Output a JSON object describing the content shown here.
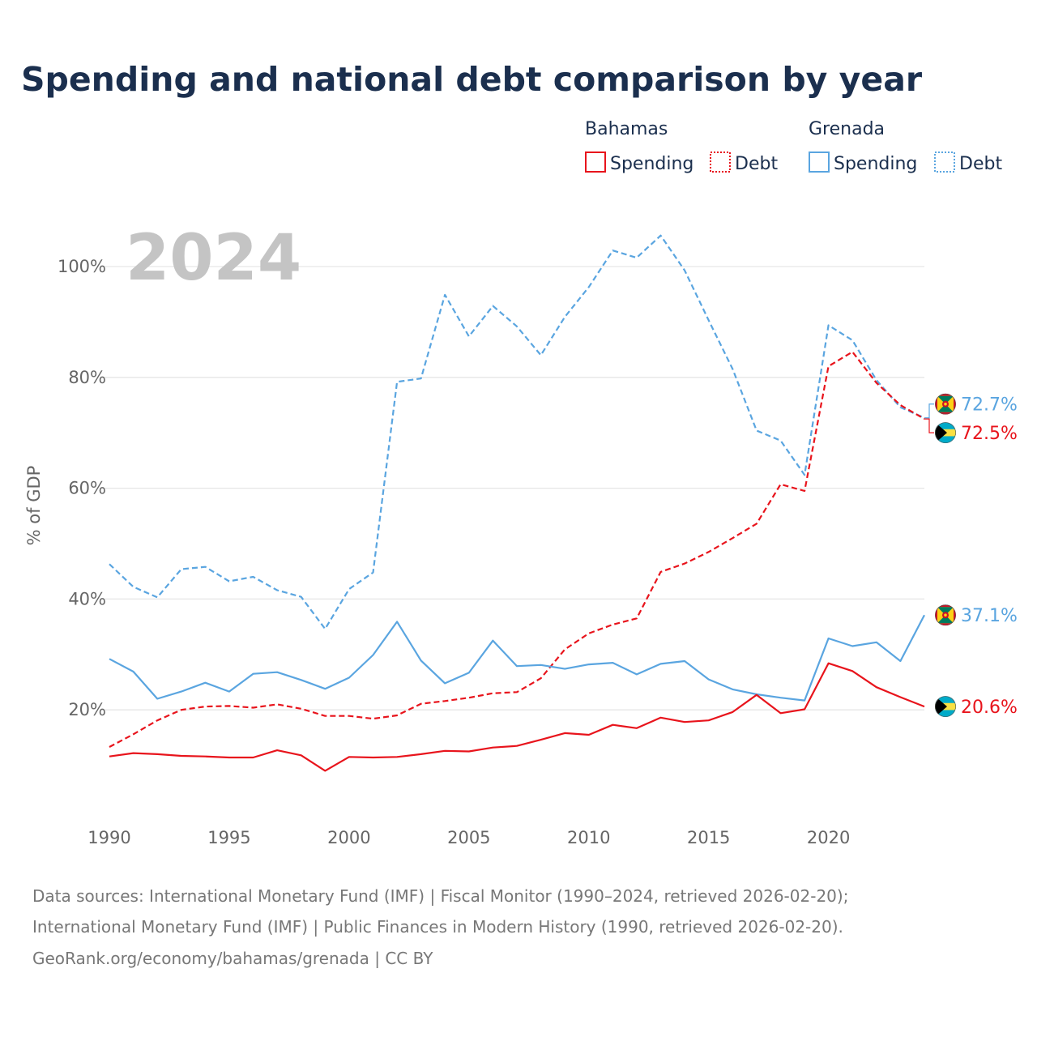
{
  "title": "Spending and national debt comparison by year",
  "year_watermark": "2024",
  "legend": {
    "groups": [
      {
        "country": "Bahamas",
        "color": "#e8141c",
        "items": [
          {
            "label": "Spending",
            "style": "solid"
          },
          {
            "label": "Debt",
            "style": "dotted"
          }
        ]
      },
      {
        "country": "Grenada",
        "color": "#5aa5e0",
        "items": [
          {
            "label": "Spending",
            "style": "solid"
          },
          {
            "label": "Debt",
            "style": "dotted"
          }
        ]
      }
    ]
  },
  "chart_data": {
    "type": "line",
    "title": "Spending and national debt comparison by year",
    "xlabel": "",
    "ylabel": "% of GDP",
    "xlim": [
      1990,
      2024
    ],
    "ylim": [
      0,
      110
    ],
    "x_ticks": [
      1990,
      1995,
      2000,
      2005,
      2010,
      2015,
      2020
    ],
    "y_ticks": [
      20,
      40,
      60,
      80,
      100
    ],
    "y_tick_labels": [
      "20%",
      "40%",
      "60%",
      "80%",
      "100%"
    ],
    "grid": true,
    "x": [
      1990,
      1991,
      1992,
      1993,
      1994,
      1995,
      1996,
      1997,
      1998,
      1999,
      2000,
      2001,
      2002,
      2003,
      2004,
      2005,
      2006,
      2007,
      2008,
      2009,
      2010,
      2011,
      2012,
      2013,
      2014,
      2015,
      2016,
      2017,
      2018,
      2019,
      2020,
      2021,
      2022,
      2023,
      2024
    ],
    "series": [
      {
        "name": "Grenada Debt",
        "country": "Grenada",
        "metric": "Debt",
        "color": "#5aa5e0",
        "dash": "dashed",
        "values": [
          46.3,
          42.2,
          40.3,
          45.4,
          45.8,
          43.2,
          44.0,
          41.6,
          40.4,
          34.6,
          41.8,
          44.8,
          79.2,
          79.8,
          94.9,
          87.4,
          92.9,
          89.2,
          84.0,
          90.9,
          96.3,
          102.9,
          101.6,
          105.6,
          99.3,
          90.3,
          81.5,
          70.4,
          68.6,
          62.4,
          89.4,
          86.7,
          79.5,
          74.6,
          72.7
        ],
        "end_label": "72.7%"
      },
      {
        "name": "Bahamas Debt",
        "country": "Bahamas",
        "metric": "Debt",
        "color": "#e8141c",
        "dash": "dashed",
        "values": [
          13.3,
          15.6,
          18.1,
          20.0,
          20.6,
          20.7,
          20.4,
          21.0,
          20.2,
          18.9,
          18.9,
          18.4,
          19.0,
          21.1,
          21.6,
          22.2,
          23.0,
          23.2,
          25.7,
          30.9,
          33.8,
          35.4,
          36.5,
          44.9,
          46.4,
          48.5,
          51.0,
          53.6,
          60.7,
          59.5,
          82.0,
          84.6,
          79.0,
          75.0,
          72.5
        ],
        "end_label": "72.5%"
      },
      {
        "name": "Grenada Spending",
        "country": "Grenada",
        "metric": "Spending",
        "color": "#5aa5e0",
        "dash": "solid",
        "values": [
          29.2,
          26.9,
          22.0,
          23.3,
          24.9,
          23.3,
          26.5,
          26.8,
          25.4,
          23.8,
          25.8,
          29.9,
          35.9,
          28.9,
          24.8,
          26.7,
          32.5,
          27.9,
          28.1,
          27.4,
          28.2,
          28.5,
          26.4,
          28.3,
          28.8,
          25.5,
          23.7,
          22.8,
          22.2,
          21.7,
          32.9,
          31.5,
          32.2,
          28.8,
          37.1
        ],
        "end_label": "37.1%"
      },
      {
        "name": "Bahamas Spending",
        "country": "Bahamas",
        "metric": "Spending",
        "color": "#e8141c",
        "dash": "solid",
        "values": [
          11.6,
          12.2,
          12.0,
          11.7,
          11.6,
          11.4,
          11.4,
          12.7,
          11.8,
          9.0,
          11.5,
          11.4,
          11.5,
          12.0,
          12.6,
          12.5,
          13.2,
          13.5,
          14.6,
          15.8,
          15.5,
          17.3,
          16.7,
          18.6,
          17.8,
          18.1,
          19.6,
          22.7,
          19.4,
          20.1,
          28.4,
          27.0,
          24.1,
          22.3,
          20.6
        ],
        "end_label": "20.6%"
      }
    ]
  },
  "footer": {
    "line1": "Data sources: International Monetary Fund (IMF) | Fiscal Monitor (1990–2024, retrieved 2026-02-20);",
    "line2": "International Monetary Fund (IMF) | Public Finances in Modern History (1990, retrieved 2026-02-20).",
    "line3": "GeoRank.org/economy/bahamas/grenada | CC BY"
  }
}
